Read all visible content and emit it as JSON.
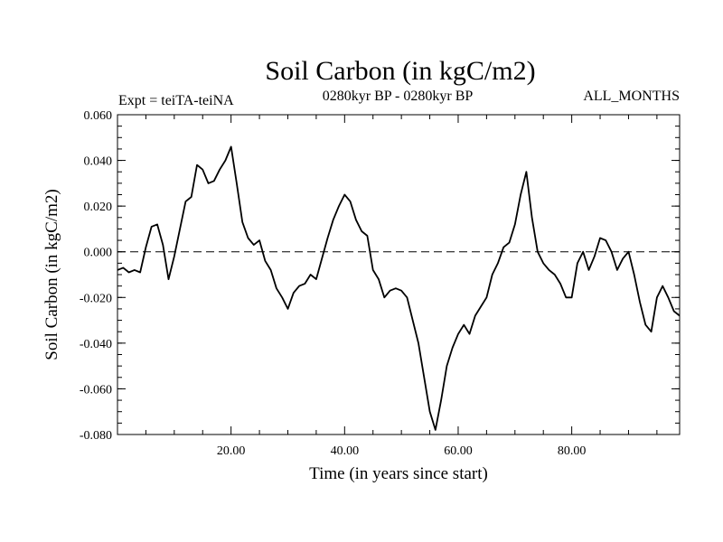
{
  "chart_data": {
    "type": "line",
    "title": "Soil Carbon (in kgC/m2)",
    "left_note": "Expt = teiTA-teiNA",
    "center_note": "0280kyr BP - 0280kyr BP",
    "right_note": "ALL_MONTHS",
    "xlabel": "Time (in years since start)",
    "ylabel": "Soil Carbon (in kgC/m2)",
    "xlim": [
      0,
      99
    ],
    "ylim": [
      -0.08,
      0.06
    ],
    "x_ticks": [
      20,
      40,
      60,
      80
    ],
    "x_tick_labels": [
      "20.00",
      "40.00",
      "60.00",
      "80.00"
    ],
    "y_ticks": [
      -0.08,
      -0.06,
      -0.04,
      -0.02,
      0.0,
      0.02,
      0.04,
      0.06
    ],
    "y_tick_labels": [
      "-0.080",
      "-0.060",
      "-0.040",
      "-0.020",
      "0.000",
      "0.020",
      "0.040",
      "0.060"
    ],
    "zero_line": "dashed",
    "grid": false,
    "series": [
      {
        "x": [
          0,
          1,
          2,
          3,
          4,
          5,
          6,
          7,
          8,
          9,
          10,
          11,
          12,
          13,
          14,
          15,
          16,
          17,
          18,
          19,
          20,
          21,
          22,
          23,
          24,
          25,
          26,
          27,
          28,
          29,
          30,
          31,
          32,
          33,
          34,
          35,
          36,
          37,
          38,
          39,
          40,
          41,
          42,
          43,
          44,
          45,
          46,
          47,
          48,
          49,
          50,
          51,
          52,
          53,
          54,
          55,
          56,
          57,
          58,
          59,
          60,
          61,
          62,
          63,
          64,
          65,
          66,
          67,
          68,
          69,
          70,
          71,
          72,
          73,
          74,
          75,
          76,
          77,
          78,
          79,
          80,
          81,
          82,
          83,
          84,
          85,
          86,
          87,
          88,
          89,
          90,
          91,
          92,
          93,
          94,
          95,
          96,
          97,
          98,
          99
        ],
        "values": [
          -0.008,
          -0.007,
          -0.009,
          -0.008,
          -0.009,
          0.002,
          0.011,
          0.012,
          0.003,
          -0.012,
          -0.002,
          0.01,
          0.022,
          0.024,
          0.038,
          0.036,
          0.03,
          0.031,
          0.036,
          0.04,
          0.046,
          0.03,
          0.013,
          0.006,
          0.003,
          0.005,
          -0.004,
          -0.008,
          -0.016,
          -0.02,
          -0.025,
          -0.018,
          -0.015,
          -0.014,
          -0.01,
          -0.012,
          -0.003,
          0.006,
          0.014,
          0.02,
          0.025,
          0.022,
          0.014,
          0.009,
          0.007,
          -0.008,
          -0.012,
          -0.02,
          -0.017,
          -0.016,
          -0.017,
          -0.02,
          -0.03,
          -0.04,
          -0.055,
          -0.07,
          -0.078,
          -0.065,
          -0.05,
          -0.042,
          -0.036,
          -0.032,
          -0.036,
          -0.028,
          -0.024,
          -0.02,
          -0.01,
          -0.005,
          0.002,
          0.004,
          0.012,
          0.025,
          0.035,
          0.015,
          0.0,
          -0.005,
          -0.008,
          -0.01,
          -0.014,
          -0.02,
          -0.02,
          -0.005,
          0.0,
          -0.008,
          -0.002,
          0.006,
          0.005,
          0.0,
          -0.008,
          -0.003,
          0.0,
          -0.01,
          -0.022,
          -0.032,
          -0.035,
          -0.02,
          -0.015,
          -0.02,
          -0.026,
          -0.028
        ]
      }
    ]
  }
}
